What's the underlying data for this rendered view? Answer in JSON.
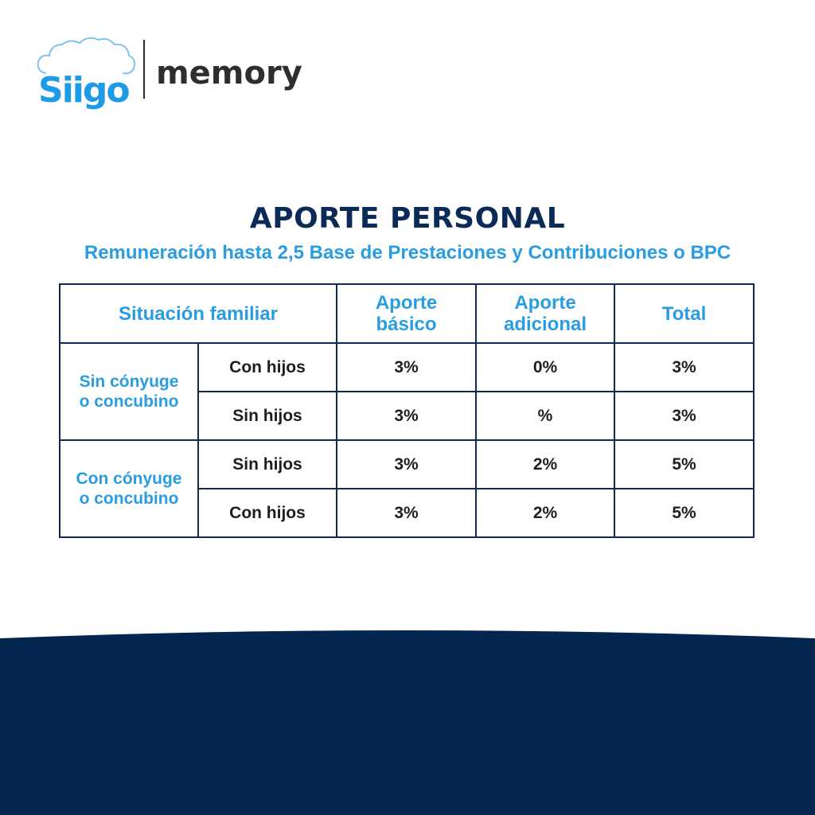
{
  "brand": {
    "logo_text": "Siigo",
    "product": "memory"
  },
  "heading": {
    "title": "APORTE PERSONAL",
    "subtitle": "Remuneración hasta 2,5 Base de Prestaciones y Contribuciones o BPC"
  },
  "table": {
    "headers": {
      "situacion": "Situación familiar",
      "aporte_basico": "Aporte básico",
      "aporte_adicional": "Aporte adicional",
      "total": "Total"
    },
    "groups": [
      {
        "label": "Sin cónyuge o concubino",
        "rows": [
          {
            "sub": "Con hijos",
            "basico": "3%",
            "adicional": "0%",
            "total": "3%"
          },
          {
            "sub": "Sin hijos",
            "basico": "3%",
            "adicional": "%",
            "total": "3%"
          }
        ]
      },
      {
        "label": "Con cónyuge o concubino",
        "rows": [
          {
            "sub": "Sin hijos",
            "basico": "3%",
            "adicional": "2%",
            "total": "5%"
          },
          {
            "sub": "Con hijos",
            "basico": "3%",
            "adicional": "2%",
            "total": "5%"
          }
        ]
      }
    ]
  },
  "colors": {
    "navy": "#0b2a57",
    "accent_blue": "#2a9ce0",
    "footer": "#02264d"
  }
}
